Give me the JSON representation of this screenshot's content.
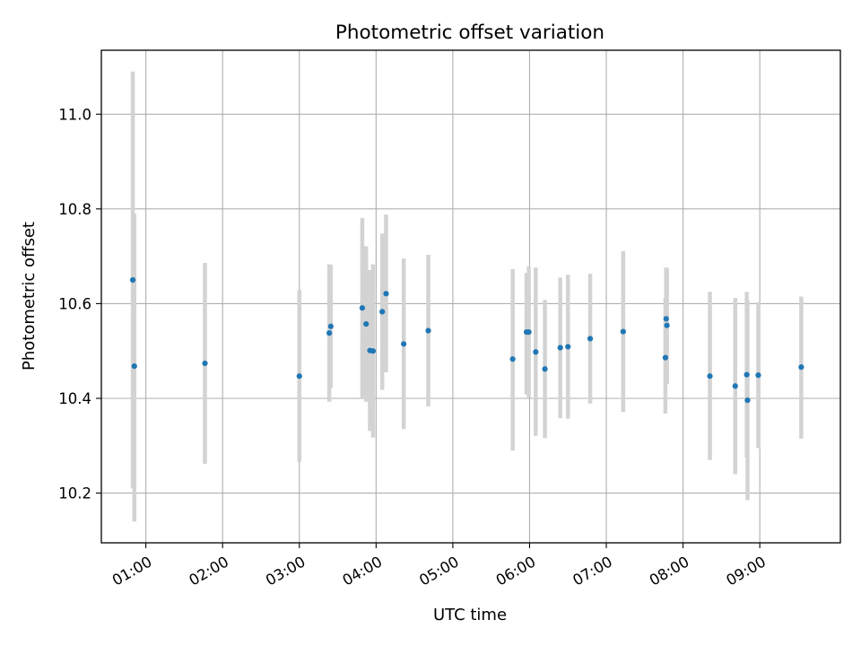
{
  "chart_data": {
    "type": "scatter",
    "title": "Photometric offset variation",
    "xlabel": "UTC time",
    "ylabel": "Photometric offset",
    "x_unit": "UTC hour",
    "xlim": [
      0.42,
      10.05
    ],
    "ylim": [
      10.095,
      11.135
    ],
    "x_ticks": [
      {
        "value": 1,
        "label": "01:00"
      },
      {
        "value": 2,
        "label": "02:00"
      },
      {
        "value": 3,
        "label": "03:00"
      },
      {
        "value": 4,
        "label": "04:00"
      },
      {
        "value": 5,
        "label": "05:00"
      },
      {
        "value": 6,
        "label": "06:00"
      },
      {
        "value": 7,
        "label": "07:00"
      },
      {
        "value": 8,
        "label": "08:00"
      },
      {
        "value": 9,
        "label": "09:00"
      }
    ],
    "y_ticks": [
      {
        "value": 10.2,
        "label": "10.2"
      },
      {
        "value": 10.4,
        "label": "10.4"
      },
      {
        "value": 10.6,
        "label": "10.6"
      },
      {
        "value": 10.8,
        "label": "10.8"
      },
      {
        "value": 11.0,
        "label": "11.0"
      }
    ],
    "grid": true,
    "series": [
      {
        "marker_color": "#1f77b4",
        "errorbar_color": "#d3d3d3",
        "points": [
          {
            "x": 0.83,
            "y": 10.65,
            "lo": 10.21,
            "hi": 11.09
          },
          {
            "x": 0.85,
            "y": 10.468,
            "lo": 10.14,
            "hi": 10.79
          },
          {
            "x": 1.77,
            "y": 10.474,
            "lo": 10.262,
            "hi": 10.686
          },
          {
            "x": 3.0,
            "y": 10.447,
            "lo": 10.266,
            "hi": 10.629
          },
          {
            "x": 3.39,
            "y": 10.538,
            "lo": 10.393,
            "hi": 10.683
          },
          {
            "x": 3.41,
            "y": 10.552,
            "lo": 10.422,
            "hi": 10.682
          },
          {
            "x": 3.82,
            "y": 10.591,
            "lo": 10.4,
            "hi": 10.781
          },
          {
            "x": 3.87,
            "y": 10.557,
            "lo": 10.393,
            "hi": 10.721
          },
          {
            "x": 3.92,
            "y": 10.501,
            "lo": 10.331,
            "hi": 10.671
          },
          {
            "x": 3.96,
            "y": 10.5,
            "lo": 10.317,
            "hi": 10.683
          },
          {
            "x": 4.08,
            "y": 10.583,
            "lo": 10.418,
            "hi": 10.748
          },
          {
            "x": 4.13,
            "y": 10.621,
            "lo": 10.455,
            "hi": 10.788
          },
          {
            "x": 4.36,
            "y": 10.515,
            "lo": 10.335,
            "hi": 10.695
          },
          {
            "x": 4.68,
            "y": 10.543,
            "lo": 10.383,
            "hi": 10.703
          },
          {
            "x": 5.78,
            "y": 10.483,
            "lo": 10.29,
            "hi": 10.673
          },
          {
            "x": 5.96,
            "y": 10.54,
            "lo": 10.408,
            "hi": 10.665
          },
          {
            "x": 5.99,
            "y": 10.54,
            "lo": 10.402,
            "hi": 10.679
          },
          {
            "x": 6.08,
            "y": 10.498,
            "lo": 10.321,
            "hi": 10.676
          },
          {
            "x": 6.2,
            "y": 10.462,
            "lo": 10.316,
            "hi": 10.608
          },
          {
            "x": 6.4,
            "y": 10.507,
            "lo": 10.358,
            "hi": 10.655
          },
          {
            "x": 6.5,
            "y": 10.509,
            "lo": 10.357,
            "hi": 10.661
          },
          {
            "x": 6.79,
            "y": 10.526,
            "lo": 10.389,
            "hi": 10.663
          },
          {
            "x": 7.22,
            "y": 10.541,
            "lo": 10.371,
            "hi": 10.711
          },
          {
            "x": 7.77,
            "y": 10.486,
            "lo": 10.368,
            "hi": 10.612
          },
          {
            "x": 7.78,
            "y": 10.568,
            "lo": 10.46,
            "hi": 10.676
          },
          {
            "x": 7.79,
            "y": 10.554,
            "lo": 10.43,
            "hi": 10.674
          },
          {
            "x": 8.35,
            "y": 10.447,
            "lo": 10.27,
            "hi": 10.625
          },
          {
            "x": 8.68,
            "y": 10.426,
            "lo": 10.24,
            "hi": 10.612
          },
          {
            "x": 8.83,
            "y": 10.45,
            "lo": 10.275,
            "hi": 10.625
          },
          {
            "x": 8.84,
            "y": 10.396,
            "lo": 10.185,
            "hi": 10.607
          },
          {
            "x": 8.98,
            "y": 10.449,
            "lo": 10.295,
            "hi": 10.603
          },
          {
            "x": 9.54,
            "y": 10.466,
            "lo": 10.315,
            "hi": 10.615
          }
        ]
      }
    ]
  }
}
